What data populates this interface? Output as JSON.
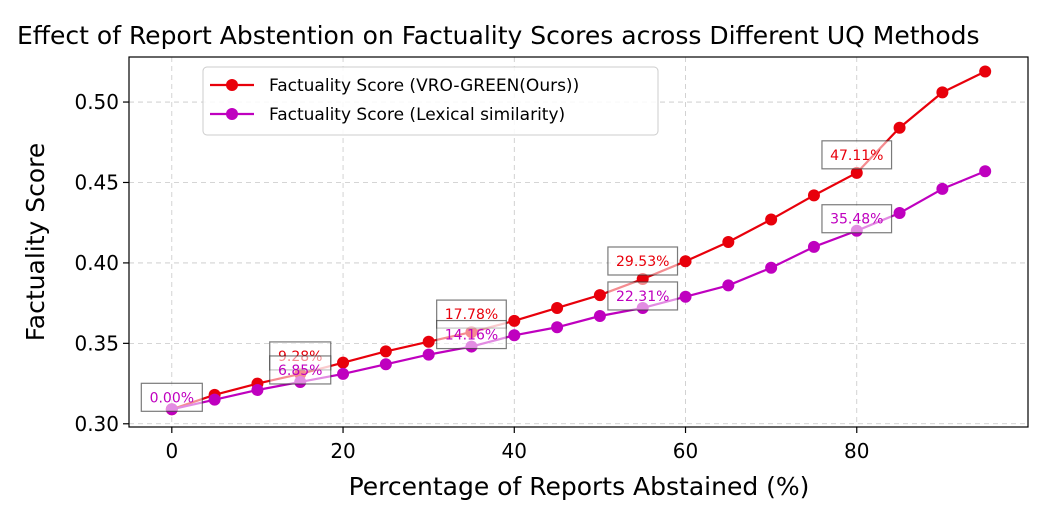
{
  "chart_data": {
    "type": "line",
    "title": "Effect of Report Abstention on Factuality Scores across Different UQ Methods",
    "xlabel": "Percentage of Reports Abstained (%)",
    "ylabel": "Factuality Score",
    "xlim": [
      -5,
      100
    ],
    "ylim": [
      0.298,
      0.528
    ],
    "xticks": [
      0,
      20,
      40,
      60,
      80
    ],
    "xtick_labels": [
      "0",
      "20",
      "40",
      "60",
      "80"
    ],
    "yticks": [
      0.3,
      0.35,
      0.4,
      0.45,
      0.5
    ],
    "ytick_labels": [
      "0.30",
      "0.35",
      "0.40",
      "0.45",
      "0.50"
    ],
    "grid": true,
    "legend_position": "top-left",
    "x": [
      0,
      5,
      10,
      15,
      20,
      25,
      30,
      35,
      40,
      45,
      50,
      55,
      60,
      65,
      70,
      75,
      80,
      85,
      90,
      95
    ],
    "series": [
      {
        "name": "Factuality Score (VRO-GREEN(Ours))",
        "color": "#e8000b",
        "values": [
          0.309,
          0.318,
          0.325,
          0.331,
          0.338,
          0.345,
          0.351,
          0.357,
          0.364,
          0.372,
          0.38,
          0.39,
          0.401,
          0.413,
          0.427,
          0.442,
          0.456,
          0.484,
          0.506,
          0.519
        ]
      },
      {
        "name": "Factuality Score (Lexical similarity)",
        "color": "#bf00bf",
        "values": [
          0.309,
          0.315,
          0.321,
          0.326,
          0.331,
          0.337,
          0.343,
          0.348,
          0.355,
          0.36,
          0.367,
          0.372,
          0.379,
          0.386,
          0.397,
          0.41,
          0.42,
          0.431,
          0.446,
          0.457
        ]
      }
    ],
    "annotations": [
      {
        "series": 0,
        "x": 15,
        "y": 0.331,
        "text": "9.28%"
      },
      {
        "series": 0,
        "x": 35,
        "y": 0.357,
        "text": "17.78%"
      },
      {
        "series": 0,
        "x": 55,
        "y": 0.39,
        "text": "29.53%"
      },
      {
        "series": 0,
        "x": 80,
        "y": 0.456,
        "text": "47.11%"
      },
      {
        "series": 1,
        "x": 0,
        "y": 0.309,
        "text": "0.00%"
      },
      {
        "series": 1,
        "x": 15,
        "y": 0.326,
        "text": "6.85%"
      },
      {
        "series": 1,
        "x": 35,
        "y": 0.348,
        "text": "14.16%"
      },
      {
        "series": 1,
        "x": 55,
        "y": 0.372,
        "text": "22.31%"
      },
      {
        "series": 1,
        "x": 80,
        "y": 0.42,
        "text": "35.48%"
      }
    ]
  }
}
